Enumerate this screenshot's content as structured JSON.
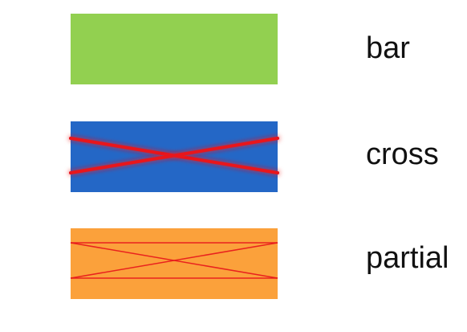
{
  "rows": [
    {
      "label": "bar",
      "fill": "#92d050",
      "pattern": "bar"
    },
    {
      "label": "cross",
      "fill": "#2467c6",
      "pattern": "cross"
    },
    {
      "label": "partial",
      "fill": "#fba13b",
      "pattern": "partial"
    }
  ],
  "colors": {
    "wire": "#e8151b",
    "glow": "#ff6b6b"
  }
}
